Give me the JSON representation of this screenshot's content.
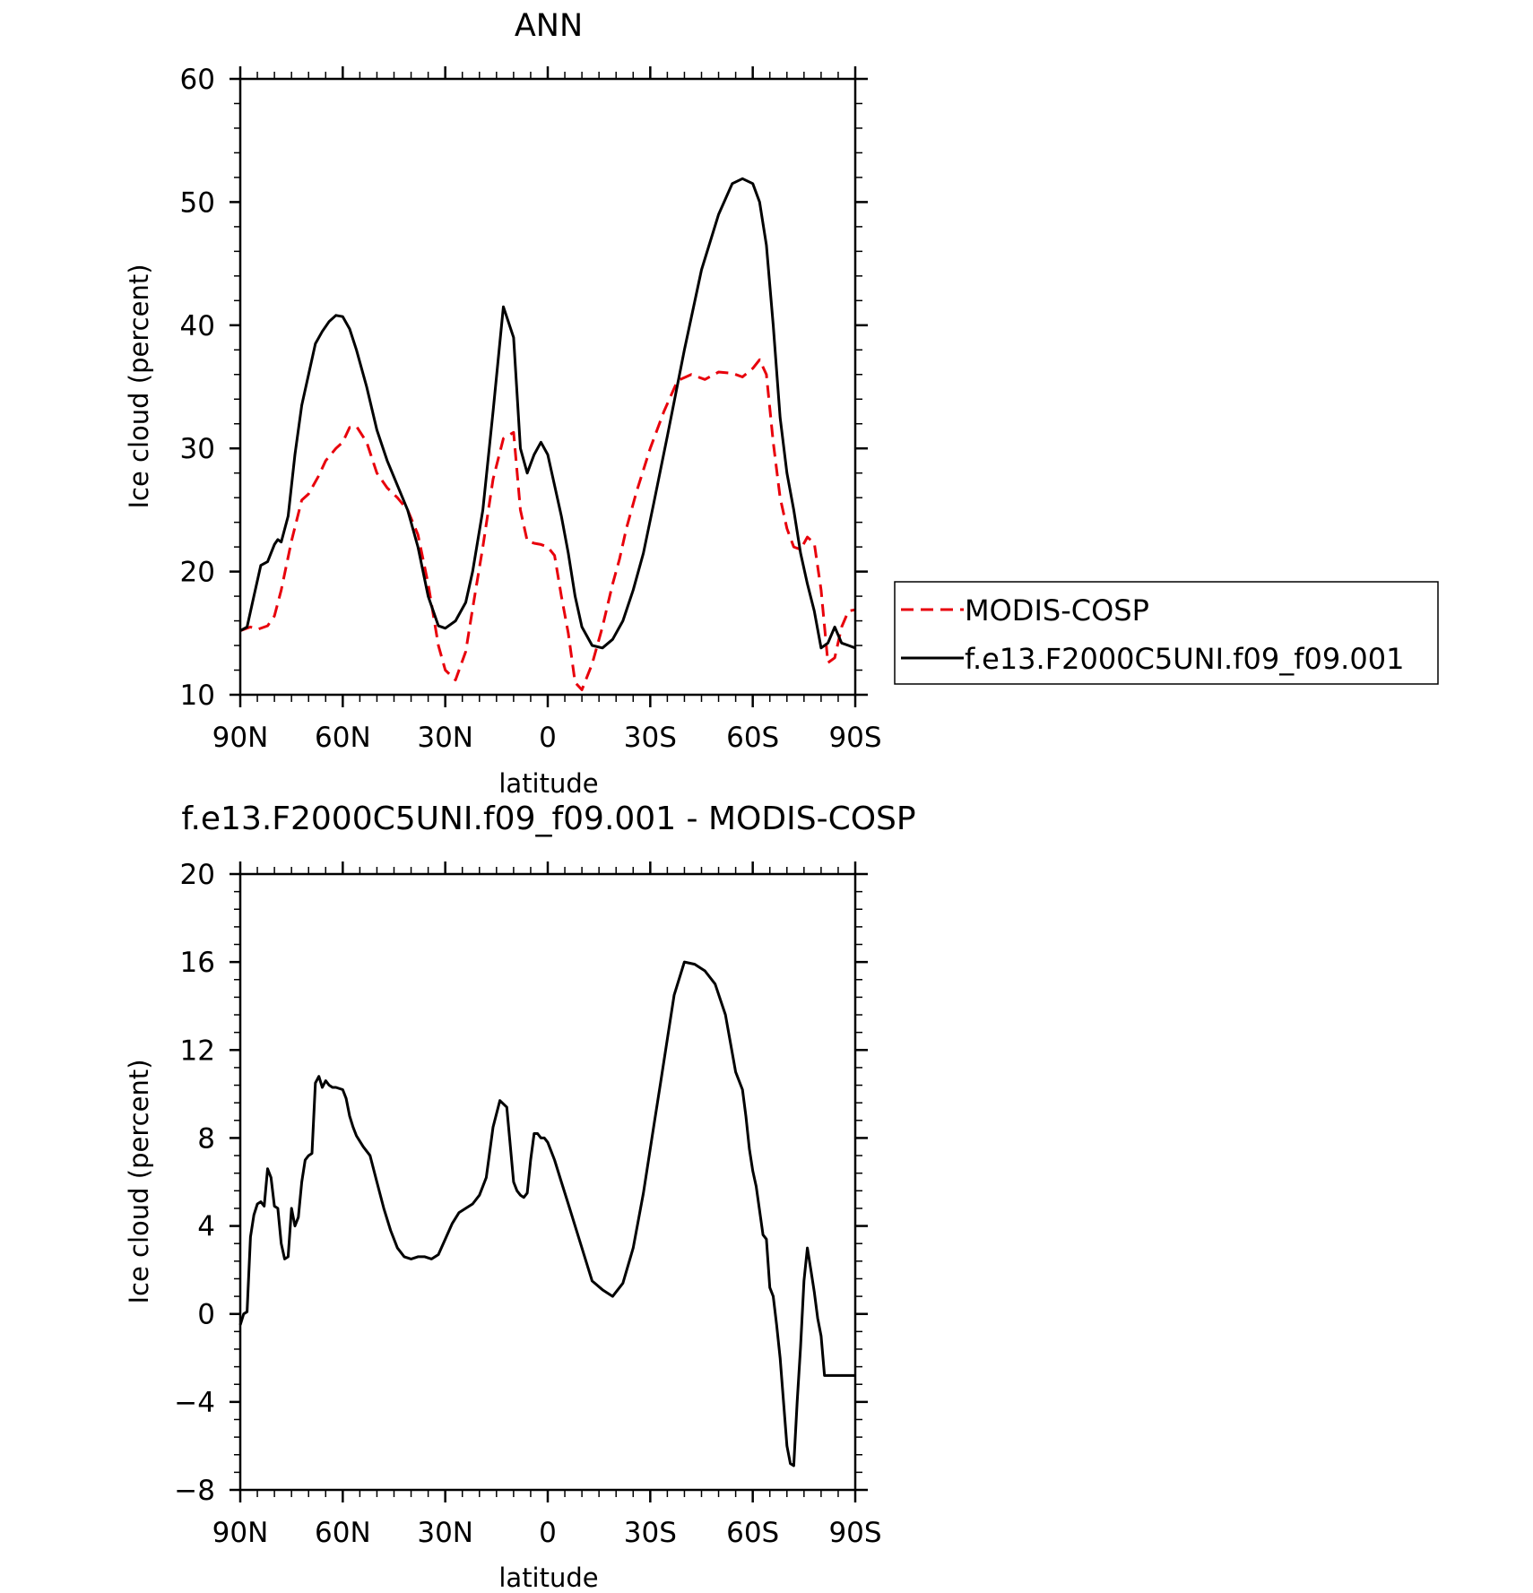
{
  "chart_data": [
    {
      "type": "line",
      "title": "ANN",
      "xlabel": "latitude",
      "ylabel": "Ice cloud (percent)",
      "xlim": [
        90,
        -90
      ],
      "ylim": [
        10,
        60
      ],
      "x_ticks": [
        {
          "value": 90,
          "label": "90N"
        },
        {
          "value": 60,
          "label": "60N"
        },
        {
          "value": 30,
          "label": "30N"
        },
        {
          "value": 0,
          "label": "0"
        },
        {
          "value": -30,
          "label": "30S"
        },
        {
          "value": -60,
          "label": "60S"
        },
        {
          "value": -90,
          "label": "90S"
        }
      ],
      "y_ticks": [
        10,
        20,
        30,
        40,
        50,
        60
      ],
      "grid": false,
      "legend": {
        "placement": "right"
      },
      "series": [
        {
          "name": "MODIS-COSP",
          "color": "#e8000b",
          "style": "dashed",
          "x": [
            90,
            87,
            85,
            82,
            80,
            78,
            75,
            72,
            70,
            67,
            65,
            62,
            60,
            58,
            56,
            53,
            50,
            47,
            44,
            41,
            38,
            35,
            32,
            30,
            27,
            24,
            22,
            19,
            16,
            13,
            10,
            8,
            6,
            4,
            2,
            0,
            -2,
            -4,
            -6,
            -8,
            -10,
            -13,
            -16,
            -19,
            -21,
            -23,
            -26,
            -30,
            -34,
            -38,
            -42,
            -46,
            -50,
            -54,
            -57,
            -60,
            -62,
            -64,
            -66,
            -68,
            -70,
            -72,
            -74,
            -76,
            -78,
            -80,
            -82,
            -84,
            -86,
            -88,
            -90
          ],
          "y": [
            15.2,
            15.5,
            15.3,
            15.6,
            16.4,
            18.5,
            22.5,
            25.8,
            26.3,
            27.8,
            29.0,
            30.0,
            30.5,
            31.7,
            31.8,
            30.5,
            28.0,
            26.8,
            26.0,
            25.0,
            23.0,
            19.0,
            14.0,
            12.0,
            11.2,
            13.5,
            17.0,
            22.0,
            27.5,
            30.8,
            31.3,
            25.0,
            22.5,
            22.3,
            22.2,
            22.0,
            21.3,
            18.0,
            15.0,
            11.0,
            10.4,
            12.5,
            15.5,
            19.0,
            21.0,
            23.5,
            26.5,
            30.0,
            33.0,
            35.5,
            36.0,
            35.6,
            36.2,
            36.1,
            35.8,
            36.5,
            37.2,
            36.0,
            30.5,
            26.0,
            23.5,
            22.0,
            21.8,
            22.8,
            22.3,
            18.5,
            12.6,
            13.0,
            15.5,
            16.8,
            16.9
          ]
        },
        {
          "name": "f.e13.F2000C5UNI.f09_f09.001",
          "color": "#000000",
          "style": "solid",
          "x": [
            90,
            88,
            86,
            84,
            82,
            80,
            79,
            78,
            76,
            74,
            72,
            70,
            68,
            66,
            64,
            62,
            60,
            58,
            56,
            53,
            50,
            47,
            44,
            41,
            38,
            35,
            32,
            30,
            27,
            24,
            22,
            19,
            16,
            13,
            10,
            8,
            6,
            4,
            2,
            0,
            -2,
            -4,
            -6,
            -8,
            -10,
            -13,
            -16,
            -19,
            -22,
            -25,
            -28,
            -31,
            -35,
            -40,
            -45,
            -50,
            -54,
            -57,
            -60,
            -62,
            -64,
            -66,
            -68,
            -70,
            -72,
            -74,
            -76,
            -78,
            -80,
            -82,
            -84,
            -86,
            -88,
            -90
          ],
          "y": [
            15.2,
            15.5,
            18.0,
            20.5,
            20.8,
            22.2,
            22.6,
            22.4,
            24.5,
            29.5,
            33.5,
            36.0,
            38.5,
            39.5,
            40.3,
            40.8,
            40.7,
            39.7,
            38.0,
            35.0,
            31.5,
            29.0,
            27.0,
            25.0,
            22.0,
            18.0,
            15.6,
            15.4,
            16.0,
            17.5,
            20.0,
            25.0,
            33.0,
            41.5,
            39.0,
            30.0,
            28.0,
            29.5,
            30.5,
            29.5,
            27.0,
            24.5,
            21.5,
            18.0,
            15.5,
            14.0,
            13.8,
            14.5,
            16.0,
            18.5,
            21.5,
            25.5,
            31.0,
            38.0,
            44.5,
            49.0,
            51.5,
            51.9,
            51.5,
            50.0,
            46.5,
            40.0,
            32.5,
            28.0,
            25.0,
            21.5,
            19.0,
            16.8,
            13.8,
            14.2,
            15.5,
            14.2,
            14.0,
            13.8
          ]
        }
      ]
    },
    {
      "type": "line",
      "title": "f.e13.F2000C5UNI.f09_f09.001 - MODIS-COSP",
      "xlabel": "latitude",
      "ylabel": "Ice cloud (percent)",
      "xlim": [
        90,
        -90
      ],
      "ylim": [
        -8,
        20
      ],
      "x_ticks": [
        {
          "value": 90,
          "label": "90N"
        },
        {
          "value": 60,
          "label": "60N"
        },
        {
          "value": 30,
          "label": "30N"
        },
        {
          "value": 0,
          "label": "0"
        },
        {
          "value": -30,
          "label": "30S"
        },
        {
          "value": -60,
          "label": "60S"
        },
        {
          "value": -90,
          "label": "90S"
        }
      ],
      "y_ticks": [
        -8,
        -4,
        0,
        4,
        8,
        12,
        16,
        20
      ],
      "grid": false,
      "series": [
        {
          "color": "#000000",
          "style": "solid",
          "x": [
            90,
            89,
            88,
            87,
            86,
            85,
            84,
            83,
            82,
            81,
            80,
            79,
            78,
            77,
            76,
            75,
            74,
            73,
            72,
            71,
            70,
            69,
            68,
            67,
            66,
            65,
            64,
            63,
            62,
            60,
            59,
            58,
            57,
            56,
            54,
            52,
            50,
            48,
            46,
            44,
            42,
            40,
            38,
            36,
            34,
            32,
            30,
            28,
            26,
            24,
            22,
            20,
            18,
            16,
            14,
            12,
            10,
            9,
            8,
            7,
            6,
            5,
            4,
            3,
            2,
            1,
            0,
            -2,
            -4,
            -6,
            -8,
            -10,
            -13,
            -16,
            -19,
            -22,
            -25,
            -28,
            -31,
            -33,
            -35,
            -37,
            -40,
            -43,
            -46,
            -49,
            -52,
            -55,
            -57,
            -58,
            -59,
            -60,
            -61,
            -62,
            -63,
            -64,
            -65,
            -66,
            -67,
            -68,
            -69,
            -70,
            -71,
            -72,
            -73,
            -74,
            -75,
            -76,
            -77,
            -78,
            -79,
            -80,
            -81,
            -82,
            -83,
            -84,
            -85,
            -86,
            -87,
            -88,
            -89,
            -90
          ],
          "y": [
            -0.5,
            0.0,
            0.1,
            3.5,
            4.5,
            5.0,
            5.1,
            4.9,
            6.6,
            6.2,
            4.9,
            4.8,
            3.2,
            2.5,
            2.6,
            4.8,
            4.0,
            4.4,
            6.0,
            7.0,
            7.2,
            7.3,
            10.5,
            10.8,
            10.3,
            10.6,
            10.4,
            10.3,
            10.3,
            10.2,
            9.8,
            9.0,
            8.5,
            8.1,
            7.6,
            7.2,
            6.0,
            4.8,
            3.8,
            3.0,
            2.6,
            2.5,
            2.6,
            2.6,
            2.5,
            2.7,
            3.4,
            4.1,
            4.6,
            4.8,
            5.0,
            5.4,
            6.2,
            8.5,
            9.7,
            9.4,
            6.0,
            5.6,
            5.4,
            5.3,
            5.5,
            7.0,
            8.2,
            8.2,
            8.0,
            8.0,
            7.8,
            7.0,
            6.0,
            5.0,
            4.0,
            3.0,
            1.5,
            1.1,
            0.8,
            1.4,
            3.0,
            5.5,
            8.5,
            10.5,
            12.5,
            14.5,
            16.0,
            15.9,
            15.6,
            15.0,
            13.6,
            11.0,
            10.2,
            9.0,
            7.5,
            6.5,
            5.8,
            4.7,
            3.6,
            3.4,
            1.2,
            0.8,
            -0.5,
            -2.0,
            -4.0,
            -6.0,
            -6.8,
            -6.9,
            -4.0,
            -1.5,
            1.5,
            3.0,
            2.0,
            1.0,
            -0.2,
            -1.0,
            -2.8,
            -2.8,
            -2.8,
            -2.8,
            -2.8,
            -2.8,
            -2.8,
            -2.8,
            -2.8,
            -2.8
          ]
        }
      ]
    }
  ],
  "colors": {
    "axes": "#000000",
    "background": "#ffffff",
    "model": "#000000",
    "obs": "#e8000b"
  }
}
